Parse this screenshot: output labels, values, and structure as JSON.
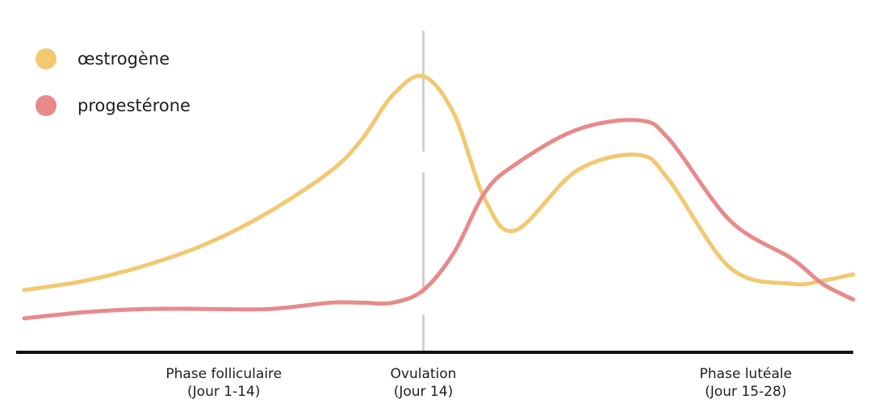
{
  "chart_data": {
    "type": "line",
    "title": "",
    "xlabel": "",
    "ylabel": "",
    "xlim": [
      1,
      28
    ],
    "ylim": [
      0,
      100
    ],
    "grid": false,
    "legend": "top-left",
    "x": [
      1,
      3,
      5,
      7,
      9,
      11,
      12,
      13,
      14,
      15,
      16,
      17,
      19,
      21,
      22,
      24,
      26,
      27,
      28
    ],
    "series": [
      {
        "name": "œstrogène",
        "color": "#f2c870",
        "values": [
          18,
          21,
          26,
          33,
          43,
          56,
          66,
          80,
          86,
          74,
          47,
          37,
          56,
          61,
          53,
          25,
          20,
          21,
          23
        ]
      },
      {
        "name": "progestérone",
        "color": "#e88a8a",
        "values": [
          9,
          11,
          12,
          12,
          12,
          14,
          14,
          14,
          18,
          30,
          49,
          58,
          69,
          72,
          66,
          40,
          28,
          20,
          15
        ]
      }
    ],
    "categories": [
      {
        "line1": "Phase folliculaire",
        "line2": "(Jour 1-14)",
        "x": 7.5
      },
      {
        "line1": "Ovulation",
        "line2": "(Jour 14)",
        "x": 14
      },
      {
        "line1": "Phase lutéale",
        "line2": "(Jour 15-28)",
        "x": 24.5
      }
    ],
    "marker": {
      "x": 14,
      "style": "dashed",
      "color": "#cfcfcf"
    },
    "axis_color": "#111111"
  }
}
